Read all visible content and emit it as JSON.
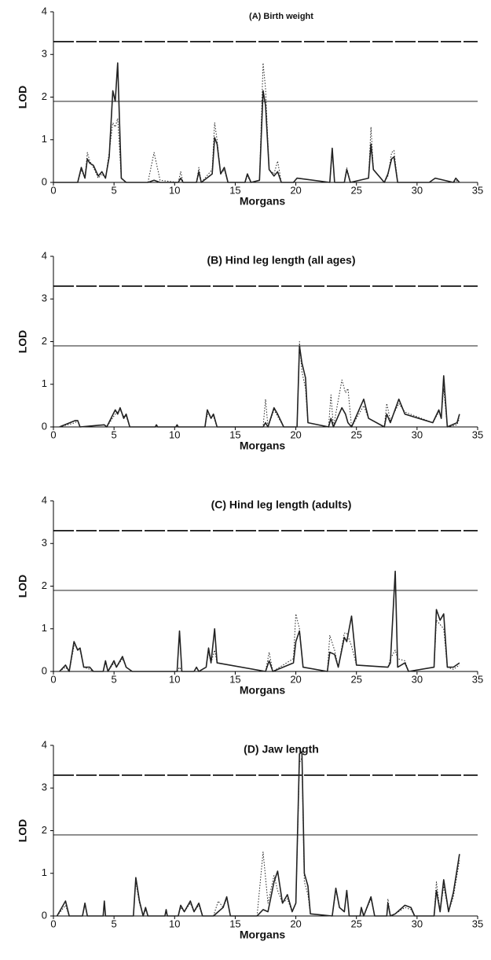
{
  "chart_data": [
    {
      "type": "line",
      "title": "(A) Birth weight",
      "xlabel": "Morgans",
      "ylabel": "LOD",
      "x": [
        0,
        2,
        2.3,
        2.6,
        2.8,
        3,
        3.3,
        3.7,
        4,
        4.3,
        4.6,
        4.9,
        5.1,
        5.3,
        5.6,
        6,
        7.8,
        8.3,
        8.8,
        10.3,
        10.5,
        10.7,
        11.8,
        12,
        12.2,
        13.1,
        13.3,
        13.5,
        13.8,
        14.1,
        14.4,
        15.8,
        16,
        16.3,
        17,
        17.3,
        17.5,
        17.8,
        18.2,
        18.5,
        18.8,
        19.8,
        20.1,
        22.8,
        23,
        23.2,
        24,
        24.2,
        24.5,
        26,
        26.2,
        26.4,
        27.3,
        27.6,
        27.9,
        28.1,
        28.4,
        31,
        31.5,
        33,
        33.2,
        33.5
      ],
      "series": [
        {
          "color": "#222222",
          "style": "solid",
          "values": [
            0,
            0,
            0.35,
            0.1,
            0.55,
            0.45,
            0.4,
            0.15,
            0.25,
            0.1,
            0.6,
            2.15,
            1.9,
            2.8,
            0.1,
            0,
            0,
            0.05,
            0,
            0,
            0.1,
            0,
            0,
            0.25,
            0,
            0.2,
            1.05,
            0.9,
            0.2,
            0.35,
            0,
            0,
            0.2,
            0,
            0.05,
            2.15,
            1.8,
            0.3,
            0.15,
            0.25,
            0,
            0,
            0.1,
            0,
            0.8,
            0,
            0,
            0.3,
            0,
            0.1,
            0.9,
            0.3,
            0,
            0.2,
            0.55,
            0.6,
            0,
            0,
            0.1,
            0,
            0.1,
            0
          ]
        },
        {
          "color": "#222222",
          "style": "dotted",
          "values": [
            0,
            0,
            0.3,
            0.1,
            0.7,
            0.5,
            0.35,
            0.1,
            0.2,
            0.1,
            0.7,
            1.4,
            1.3,
            1.5,
            0.1,
            0,
            0,
            0.7,
            0.05,
            0,
            0.25,
            0,
            0,
            0.35,
            0,
            0.3,
            1.4,
            1.0,
            0.2,
            0.3,
            0,
            0,
            0.15,
            0,
            0.05,
            2.8,
            2.2,
            0.3,
            0.2,
            0.5,
            0,
            0,
            0.1,
            0,
            0.7,
            0,
            0,
            0.35,
            0,
            0.1,
            1.3,
            0.3,
            0,
            0.15,
            0.7,
            0.75,
            0,
            0,
            0.1,
            0,
            0.05,
            0
          ]
        }
      ],
      "hlines": [
        {
          "value": 3.3,
          "style": "dashed"
        },
        {
          "value": 1.9,
          "style": "solid"
        }
      ],
      "xlim": [
        0,
        35
      ],
      "ylim": [
        0,
        4
      ],
      "xticks": [
        0,
        5,
        10,
        15,
        20,
        25,
        30,
        35
      ],
      "yticks": [
        0,
        1,
        2,
        3,
        4
      ]
    },
    {
      "type": "line",
      "title": "(B) Hind leg length (all ages)",
      "xlabel": "Morgans",
      "ylabel": "LOD",
      "x": [
        0.5,
        1.8,
        2,
        2.2,
        4.2,
        4.4,
        5.1,
        5.3,
        5.5,
        5.8,
        6,
        6.3,
        8.4,
        8.5,
        8.6,
        10.1,
        10.2,
        10.3,
        12.5,
        12.7,
        13,
        13.2,
        13.5,
        17.3,
        17.5,
        17.7,
        18.2,
        18.5,
        19,
        20.1,
        20.3,
        20.5,
        20.8,
        21,
        22.7,
        22.9,
        23.1,
        23.8,
        24.1,
        24.3,
        24.6,
        25.6,
        26,
        27.3,
        27.5,
        27.8,
        28.5,
        29,
        31.3,
        31.8,
        32,
        32.2,
        32.5,
        33.3,
        33.5
      ],
      "series": [
        {
          "color": "#222222",
          "style": "solid",
          "values": [
            0,
            0.15,
            0.15,
            0,
            0.05,
            0,
            0.4,
            0.3,
            0.45,
            0.2,
            0.3,
            0,
            0,
            0.05,
            0,
            0,
            0.05,
            0,
            0,
            0.4,
            0.2,
            0.3,
            0,
            0,
            0.1,
            0,
            0.45,
            0.3,
            0,
            0,
            1.9,
            1.5,
            1.15,
            0.1,
            0,
            0.2,
            0,
            0.45,
            0.3,
            0.1,
            0,
            0.65,
            0.2,
            0,
            0.3,
            0.1,
            0.65,
            0.3,
            0.1,
            0.4,
            0.2,
            1.2,
            0,
            0.1,
            0.3
          ]
        },
        {
          "color": "#222222",
          "style": "dotted",
          "values": [
            0,
            0.1,
            0.15,
            0,
            0.05,
            0,
            0.3,
            0.35,
            0.4,
            0.25,
            0.25,
            0,
            0,
            0.05,
            0,
            0,
            0.05,
            0,
            0,
            0.3,
            0.25,
            0.25,
            0,
            0,
            0.65,
            0,
            0.4,
            0.25,
            0,
            0,
            2.0,
            1.3,
            0.9,
            0.1,
            0,
            0.75,
            0,
            1.1,
            0.8,
            0.9,
            0,
            0.5,
            0.2,
            0,
            0.55,
            0.15,
            0.55,
            0.35,
            0.1,
            0.35,
            0.25,
            0.9,
            0,
            0.05,
            0.2
          ]
        }
      ],
      "hlines": [
        {
          "value": 3.3,
          "style": "dashed"
        },
        {
          "value": 1.9,
          "style": "solid"
        }
      ],
      "xlim": [
        0,
        35
      ],
      "ylim": [
        0,
        4
      ],
      "xticks": [
        0,
        5,
        10,
        15,
        20,
        25,
        30,
        35
      ],
      "yticks": [
        0,
        1,
        2,
        3,
        4
      ]
    },
    {
      "type": "line",
      "title": "(C) Hind leg length (adults)",
      "xlabel": "Morgans",
      "ylabel": "LOD",
      "x": [
        0.5,
        1,
        1.3,
        1.7,
        2,
        2.2,
        2.5,
        3,
        3.3,
        4.1,
        4.3,
        4.5,
        5,
        5.2,
        5.7,
        6,
        6.5,
        10.2,
        10.4,
        10.6,
        11.6,
        11.8,
        12,
        12.6,
        12.8,
        13,
        13.3,
        13.5,
        17.5,
        17.8,
        18.1,
        19.8,
        20,
        20.3,
        20.6,
        22.6,
        22.8,
        23.2,
        23.5,
        24,
        24.2,
        24.6,
        25,
        27.6,
        27.8,
        28.2,
        28.4,
        29,
        29.3,
        31.4,
        31.6,
        31.9,
        32.2,
        32.5,
        33,
        33.5
      ],
      "series": [
        {
          "color": "#222222",
          "style": "solid",
          "values": [
            0,
            0.15,
            0,
            0.7,
            0.5,
            0.55,
            0.1,
            0.1,
            0,
            0,
            0.25,
            0,
            0.25,
            0.1,
            0.35,
            0.1,
            0,
            0,
            0.95,
            0,
            0,
            0.1,
            0,
            0.1,
            0.55,
            0.2,
            1.0,
            0.2,
            0,
            0.25,
            0,
            0.2,
            0.7,
            0.95,
            0.1,
            0,
            0.45,
            0.4,
            0.1,
            0.8,
            0.7,
            1.3,
            0.15,
            0.1,
            0.2,
            2.35,
            0.1,
            0.2,
            0,
            0.1,
            1.45,
            1.2,
            1.35,
            0.1,
            0.1,
            0.2
          ]
        },
        {
          "color": "#222222",
          "style": "dotted",
          "values": [
            0,
            0.1,
            0,
            0.6,
            0.55,
            0.5,
            0.1,
            0.05,
            0,
            0,
            0.2,
            0,
            0.2,
            0.1,
            0.3,
            0.1,
            0,
            0,
            0.1,
            0,
            0,
            0.1,
            0,
            0.1,
            0.45,
            0.2,
            0.5,
            0.2,
            0,
            0.45,
            0,
            0.3,
            1.35,
            1.0,
            0.1,
            0,
            0.85,
            0.5,
            0.1,
            0.9,
            0.9,
            0.6,
            0.15,
            0.1,
            0.3,
            0.5,
            0.3,
            0.25,
            0,
            0.1,
            1.2,
            1.1,
            1.0,
            0.1,
            0.05,
            0.15
          ]
        }
      ],
      "hlines": [
        {
          "value": 3.3,
          "style": "dashed"
        },
        {
          "value": 1.9,
          "style": "solid"
        }
      ],
      "xlim": [
        0,
        35
      ],
      "ylim": [
        0,
        4
      ],
      "xticks": [
        0,
        5,
        10,
        15,
        20,
        25,
        30,
        35
      ],
      "yticks": [
        0,
        1,
        2,
        3,
        4
      ]
    },
    {
      "type": "line",
      "title": "(D) Jaw length",
      "xlabel": "Morgans",
      "ylabel": "LOD",
      "x": [
        0.3,
        1,
        1.3,
        2.4,
        2.6,
        2.8,
        4.1,
        4.2,
        4.3,
        6.6,
        6.8,
        7.1,
        7.4,
        7.6,
        7.8,
        9.2,
        9.3,
        9.4,
        10.3,
        10.5,
        10.8,
        11.3,
        11.6,
        12,
        12.3,
        13.2,
        13.6,
        14,
        14.3,
        14.6,
        16.8,
        17.3,
        17.7,
        18.2,
        18.5,
        18.9,
        19.3,
        19.7,
        20,
        20.3,
        20.5,
        20.7,
        21,
        21.2,
        23,
        23.3,
        23.6,
        24,
        24.2,
        24.4,
        25.3,
        25.4,
        25.6,
        26.2,
        26.5,
        27.5,
        27.6,
        27.8,
        28.2,
        29,
        29.5,
        29.8,
        31.4,
        31.6,
        31.9,
        32.2,
        32.6,
        33,
        33.5
      ],
      "series": [
        {
          "color": "#222222",
          "style": "solid",
          "values": [
            0,
            0.35,
            0,
            0,
            0.3,
            0,
            0,
            0.35,
            0,
            0,
            0.9,
            0.35,
            0,
            0.2,
            0,
            0,
            0.15,
            0,
            0,
            0.25,
            0.1,
            0.35,
            0.1,
            0.3,
            0,
            0,
            0.1,
            0.2,
            0.45,
            0,
            0,
            0.15,
            0.1,
            0.8,
            1.05,
            0.3,
            0.5,
            0.1,
            0.3,
            3.8,
            3.85,
            1.0,
            0.7,
            0.05,
            0,
            0.65,
            0.2,
            0.1,
            0.6,
            0,
            0,
            0.2,
            0,
            0.45,
            0,
            0,
            0.3,
            0,
            0.05,
            0.25,
            0.2,
            0,
            0,
            0.6,
            0.1,
            0.85,
            0.1,
            0.55,
            1.45
          ]
        },
        {
          "color": "#222222",
          "style": "dotted",
          "values": [
            0,
            0.25,
            0,
            0,
            0.25,
            0,
            0,
            0.3,
            0,
            0,
            0.8,
            0.3,
            0,
            0.15,
            0,
            0,
            0.1,
            0,
            0,
            0.2,
            0.1,
            0.3,
            0.1,
            0.25,
            0,
            0,
            0.35,
            0.2,
            0.4,
            0,
            0,
            1.5,
            0.3,
            0.95,
            0.6,
            0.3,
            0.4,
            0.1,
            0.3,
            3.6,
            3.7,
            0.8,
            0.5,
            0.05,
            0,
            0.6,
            0.2,
            0.1,
            0.55,
            0,
            0,
            0.15,
            0,
            0.4,
            0,
            0,
            0.4,
            0,
            0.05,
            0.2,
            0.15,
            0,
            0,
            0.8,
            0.1,
            0.7,
            0.1,
            0.45,
            1.3
          ]
        }
      ],
      "hlines": [
        {
          "value": 3.3,
          "style": "dashed"
        },
        {
          "value": 1.9,
          "style": "solid"
        }
      ],
      "xlim": [
        0,
        35
      ],
      "ylim": [
        0,
        4
      ],
      "xticks": [
        0,
        5,
        10,
        15,
        20,
        25,
        30,
        35
      ],
      "yticks": [
        0,
        1,
        2,
        3,
        4
      ]
    }
  ]
}
